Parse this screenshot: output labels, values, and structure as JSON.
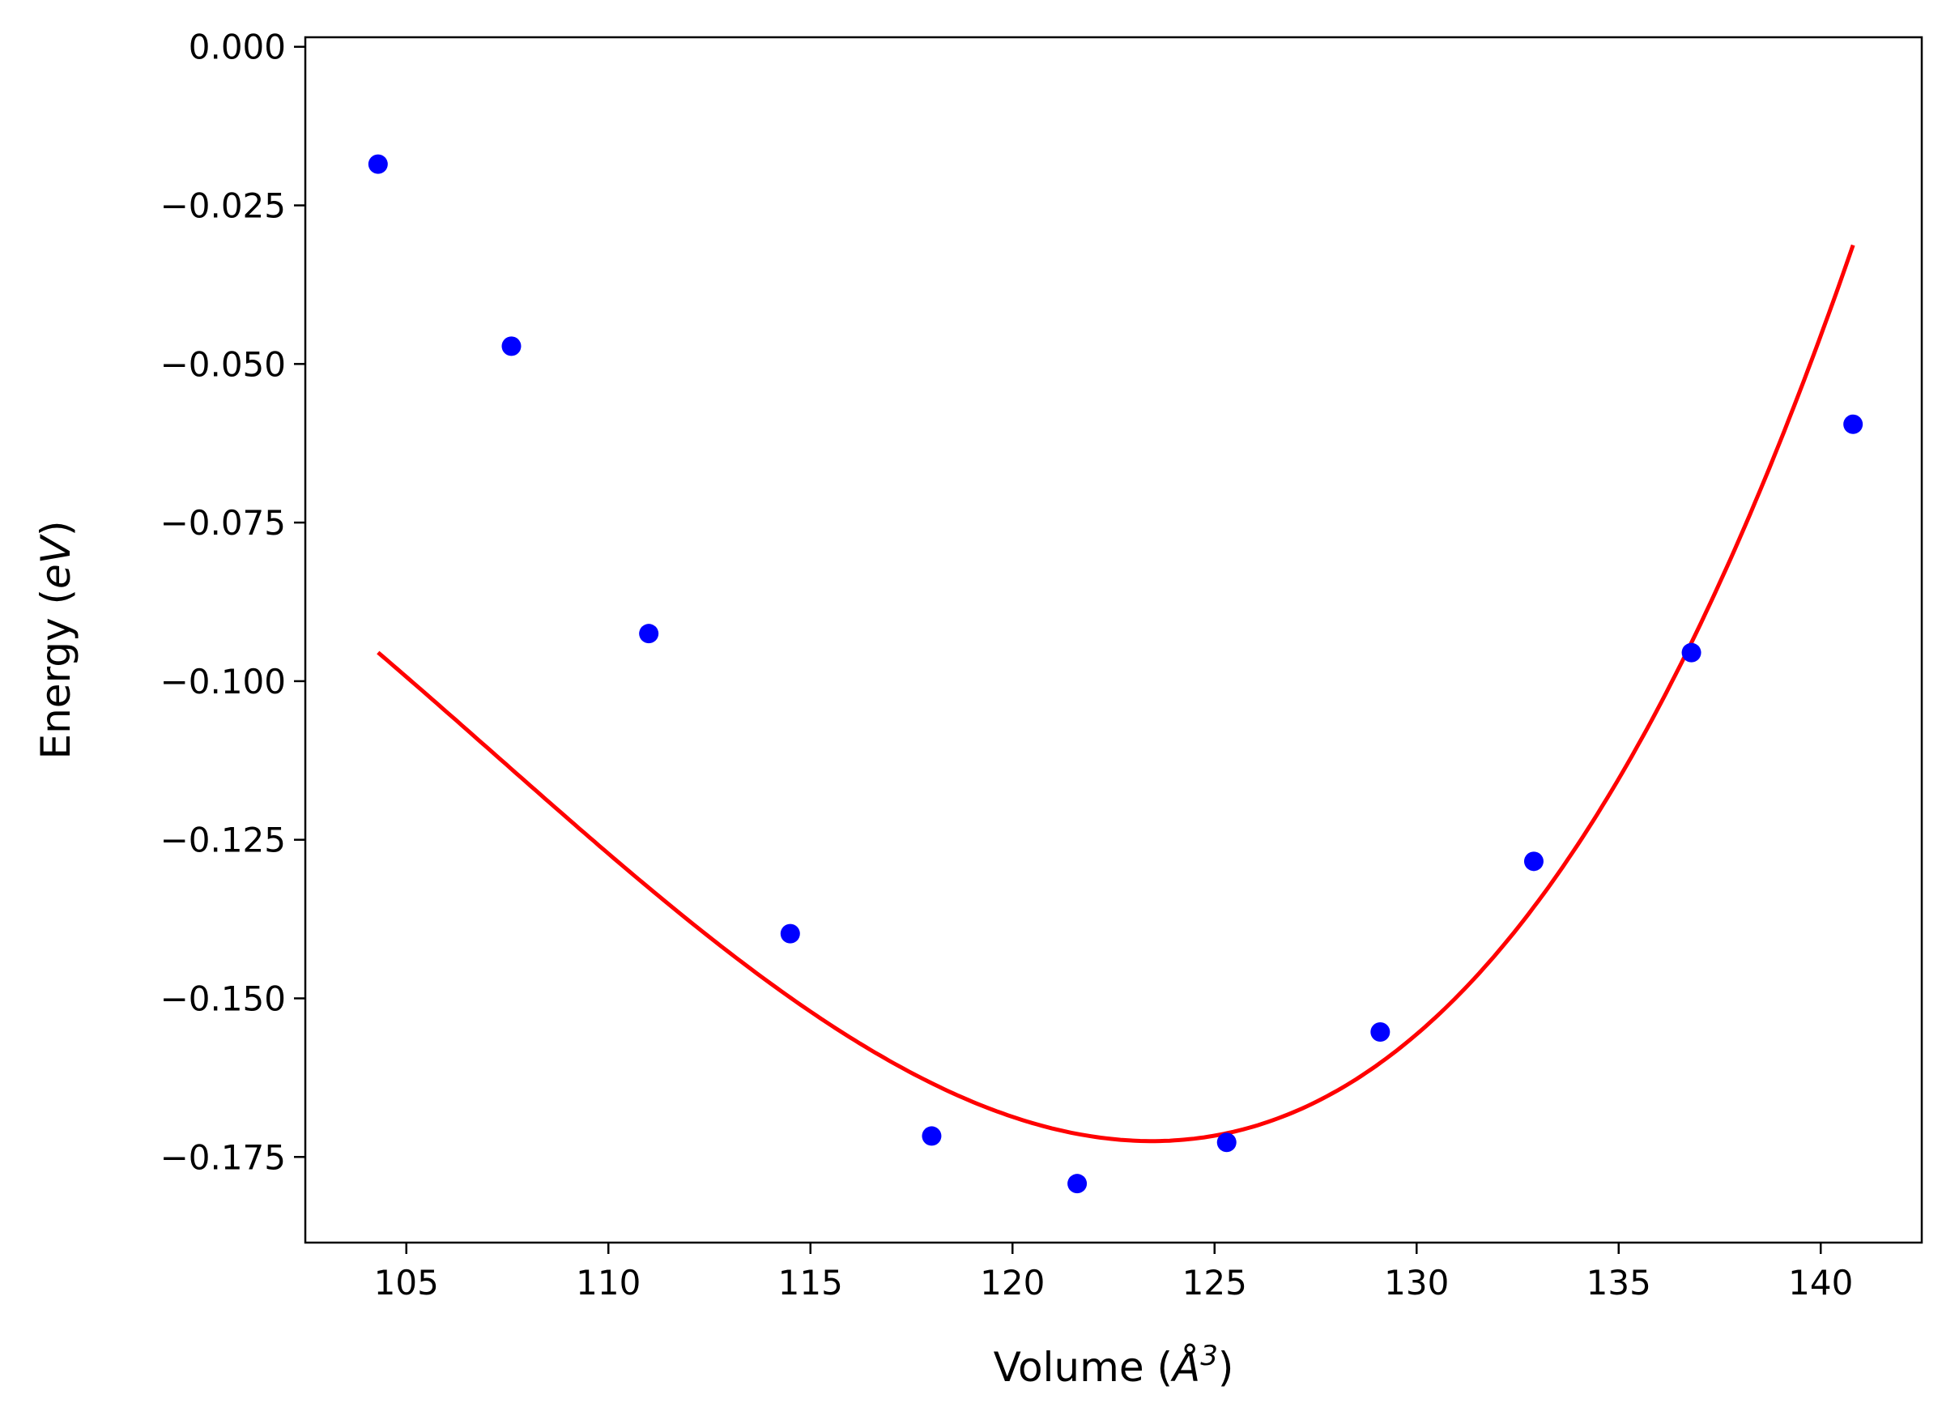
{
  "chart_data": {
    "type": "scatter",
    "xlabel_main": "Volume (",
    "xlabel_symbol": "Å",
    "xlabel_exp": "3",
    "xlabel_close": ")",
    "ylabel_main": "Energy (",
    "ylabel_unit": "eV",
    "ylabel_close": ")",
    "xlim": [
      102.5,
      142.5
    ],
    "ylim": [
      -0.1885,
      0.0015
    ],
    "x_ticks": [
      105,
      110,
      115,
      120,
      125,
      130,
      135,
      140
    ],
    "x_tick_labels": [
      "105",
      "110",
      "115",
      "120",
      "125",
      "130",
      "135",
      "140"
    ],
    "y_ticks": [
      0.0,
      -0.025,
      -0.05,
      -0.075,
      -0.1,
      -0.125,
      -0.15,
      -0.175
    ],
    "y_tick_labels": [
      "0.000",
      "−0.025",
      "−0.050",
      "−0.075",
      "−0.100",
      "−0.125",
      "−0.150",
      "−0.175"
    ],
    "grid": false,
    "series": [
      {
        "type": "scatter",
        "color": "#0000ff",
        "x": [
          104.3,
          107.6,
          111.0,
          114.5,
          118.0,
          121.6,
          125.3,
          129.1,
          132.9,
          136.8,
          140.8
        ],
        "y": [
          -0.0185,
          -0.0472,
          -0.0925,
          -0.1398,
          -0.1717,
          -0.1792,
          -0.1727,
          -0.1553,
          -0.1284,
          -0.0955,
          -0.0595
        ]
      },
      {
        "type": "line",
        "color": "#ff0000",
        "fit": "cubic",
        "x_range": [
          104.3,
          140.8
        ],
        "vertex_x": 123.45,
        "vertex_y": -0.1725,
        "a": 0.000346,
        "b": 7.1e-06
      }
    ]
  }
}
